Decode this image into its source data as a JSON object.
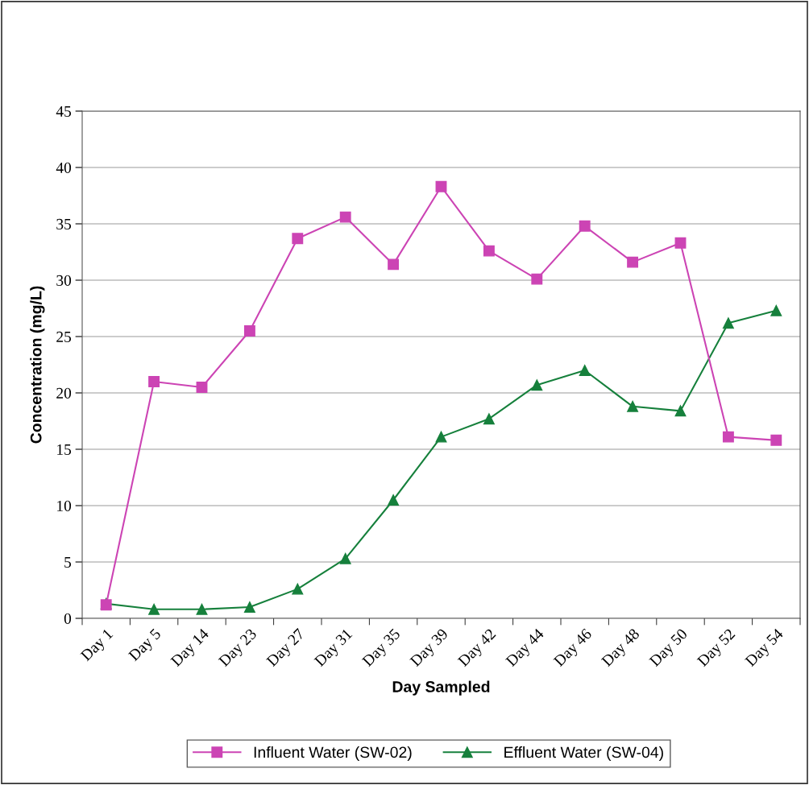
{
  "chart_data": {
    "type": "line",
    "xlabel": "Day Sampled",
    "ylabel": "Concentration (mg/L)",
    "categories": [
      "Day 1",
      "Day 5",
      "Day 14",
      "Day 23",
      "Day 27",
      "Day 31",
      "Day 35",
      "Day 39",
      "Day 42",
      "Day 44",
      "Day 46",
      "Day 48",
      "Day 50",
      "Day 52",
      "Day 54"
    ],
    "series": [
      {
        "name": "Influent Water (SW-02)",
        "color": "#cc44b4",
        "marker": "square",
        "values": [
          1.2,
          21.0,
          20.5,
          25.5,
          33.7,
          35.6,
          31.4,
          38.3,
          32.6,
          30.1,
          34.8,
          31.6,
          33.3,
          16.1,
          15.8
        ]
      },
      {
        "name": "Effluent Water (SW-04)",
        "color": "#16803c",
        "marker": "triangle",
        "values": [
          1.3,
          0.8,
          0.8,
          1.0,
          2.6,
          5.3,
          10.5,
          16.1,
          17.7,
          20.7,
          22.0,
          18.8,
          18.4,
          26.2,
          27.3
        ]
      }
    ],
    "ylim": [
      0,
      45
    ],
    "yticks": [
      0,
      5,
      10,
      15,
      20,
      25,
      30,
      35,
      40,
      45
    ],
    "grid": "y",
    "legend": "bottom",
    "line_style": "solid"
  }
}
